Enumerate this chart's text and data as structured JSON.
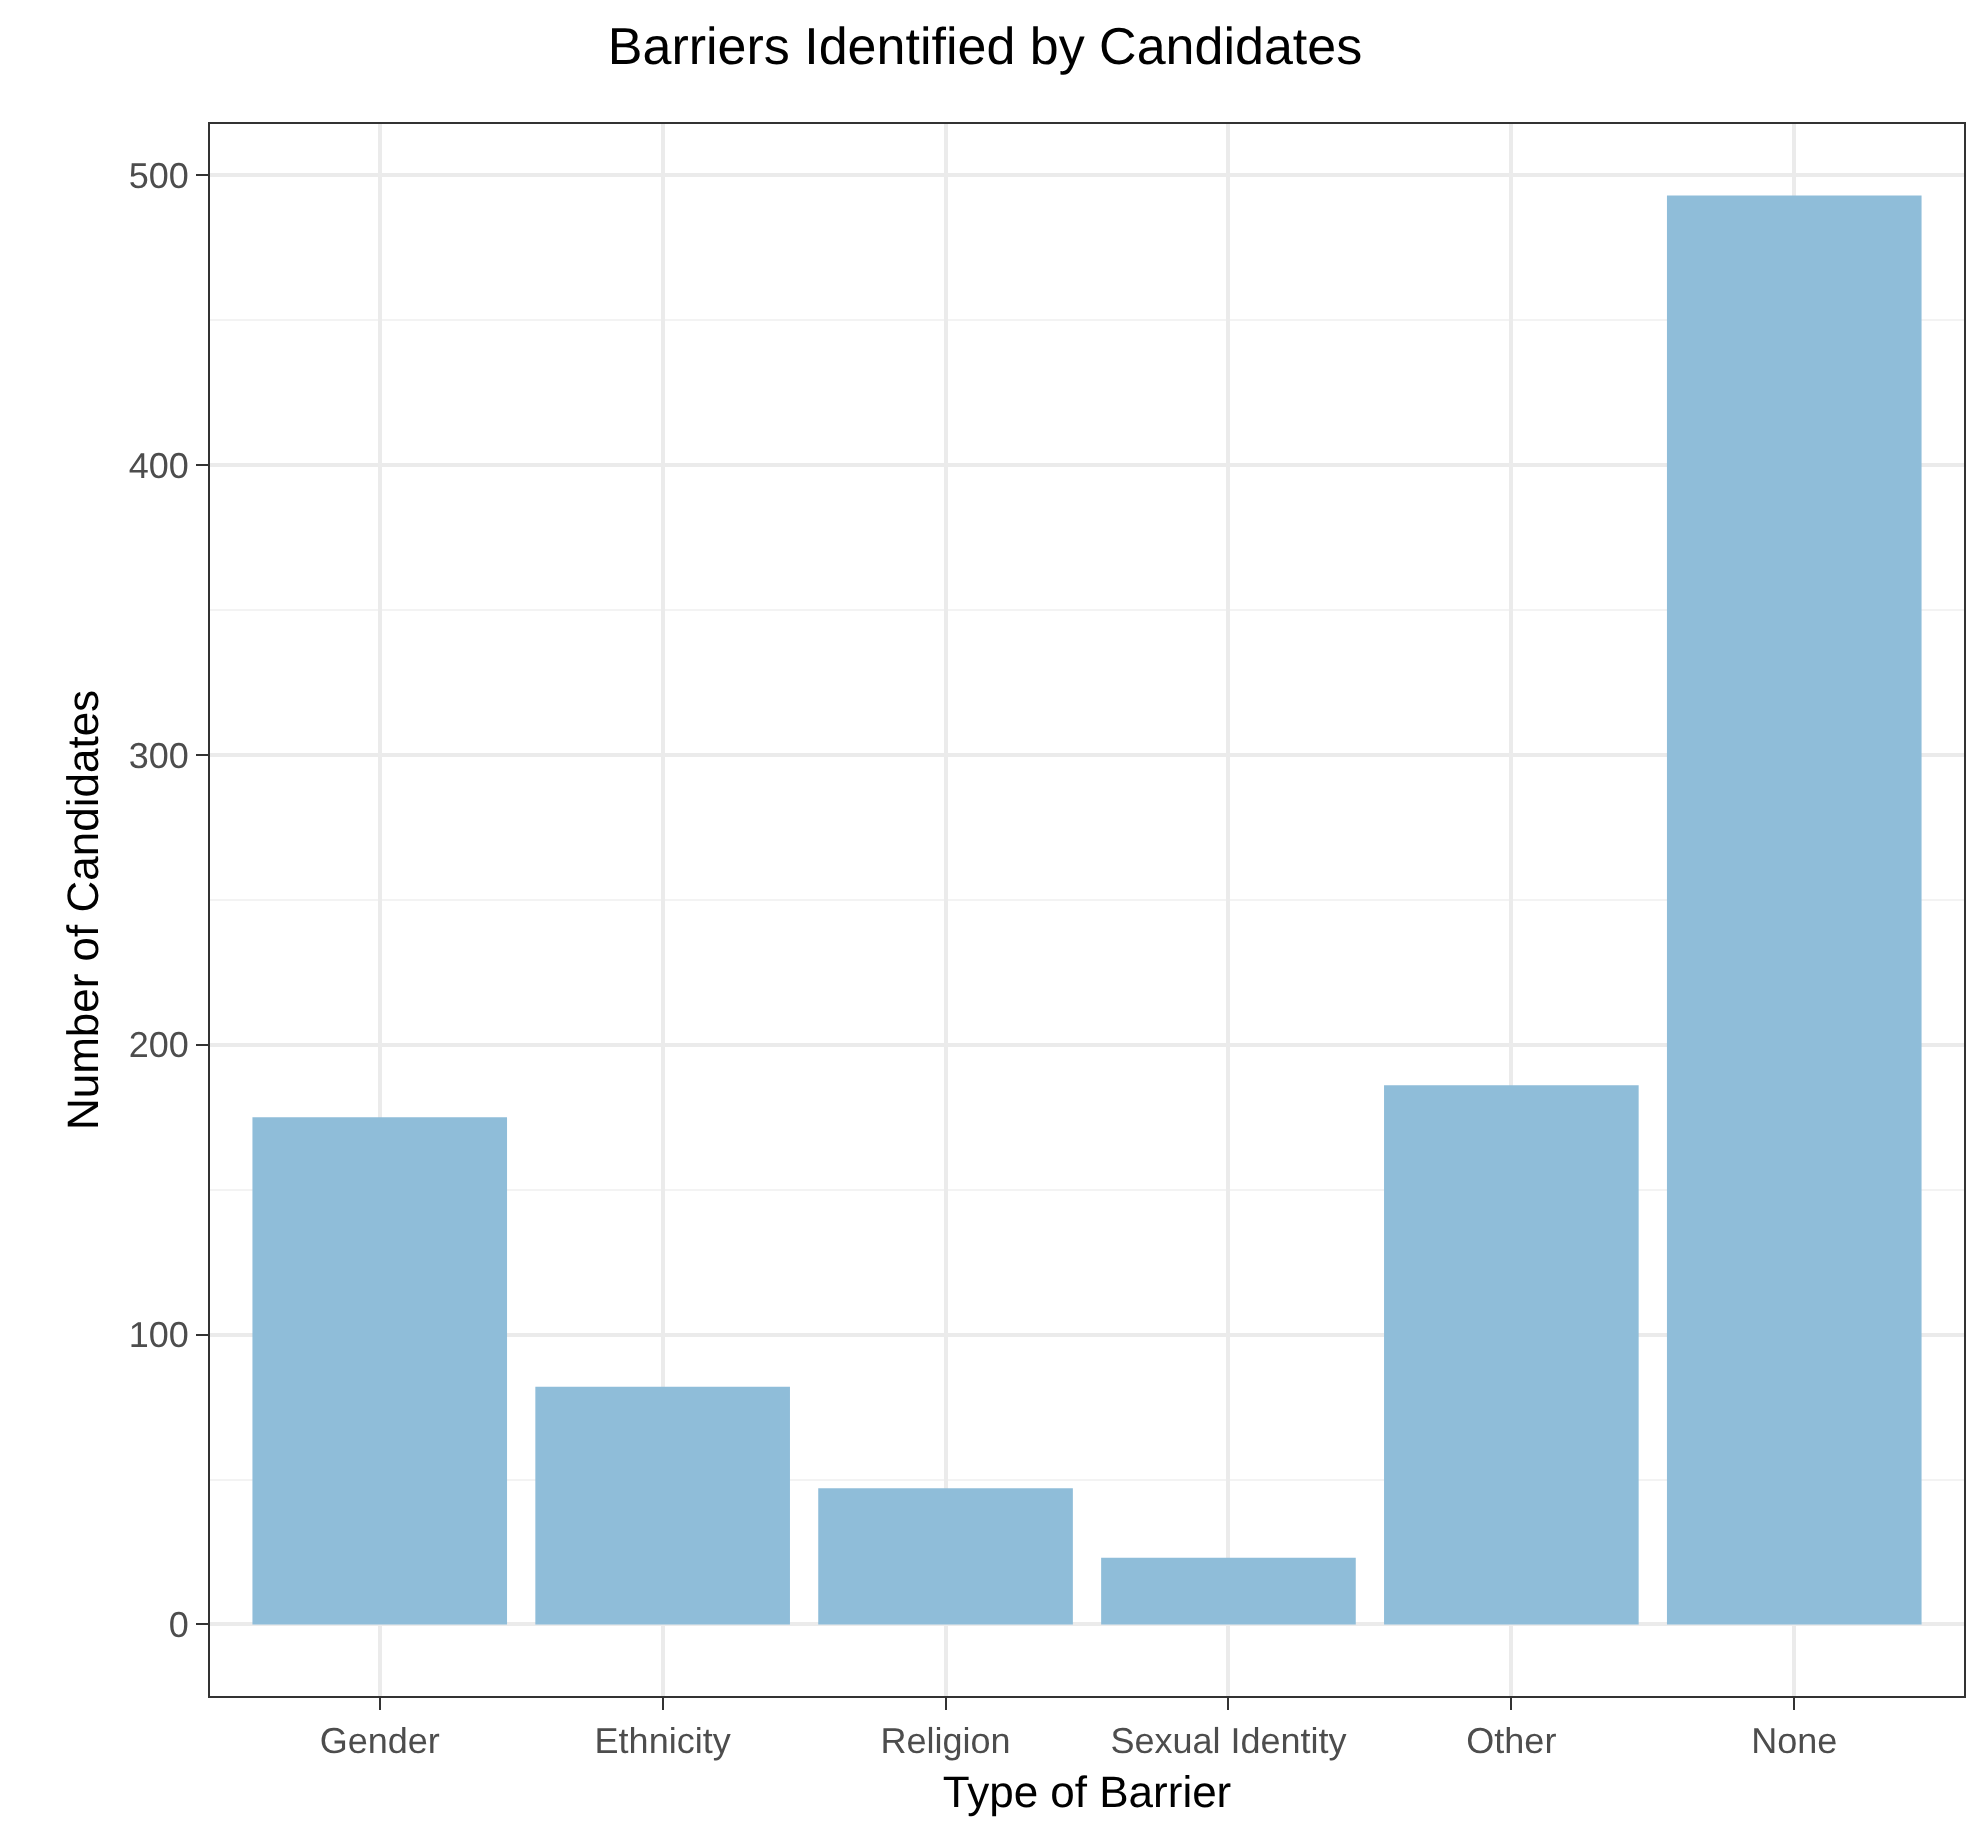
{
  "chart_data": {
    "type": "bar",
    "title": "Barriers Identified by Candidates",
    "xlabel": "Type of Barrier",
    "ylabel": "Number of Candidates",
    "categories": [
      "Gender",
      "Ethnicity",
      "Religion",
      "Sexual Identity",
      "Other",
      "None"
    ],
    "values": [
      175,
      82,
      47,
      23,
      186,
      493
    ],
    "color": "#8fbdd9",
    "ylim": [
      -24.7,
      517.7
    ],
    "yticks": [
      0,
      100,
      200,
      300,
      400,
      500
    ],
    "grid": true,
    "legend": false
  }
}
